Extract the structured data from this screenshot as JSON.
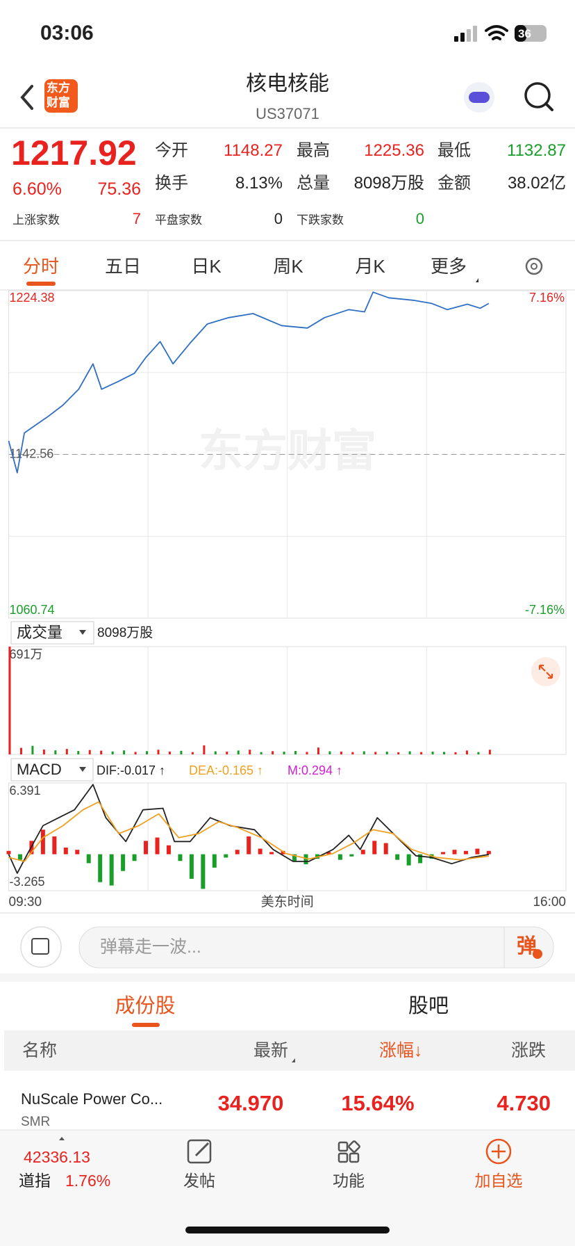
{
  "status_bar": {
    "time": "03:06",
    "battery": "36"
  },
  "header": {
    "logo_lines": [
      "东方",
      "财富"
    ],
    "title": "核电核能",
    "code": "US37071"
  },
  "quote": {
    "price": "1217.92",
    "change_pct": "6.60%",
    "change": "75.36",
    "fields": [
      {
        "label": "今开",
        "value": "1148.27",
        "color": "#e8231f"
      },
      {
        "label": "最高",
        "value": "1225.36",
        "color": "#e8231f"
      },
      {
        "label": "最低",
        "value": "1132.87",
        "color": "#1a9e2a"
      },
      {
        "label": "换手",
        "value": "8.13%",
        "color": "#222222"
      },
      {
        "label": "总量",
        "value": "8098万股",
        "color": "#222222"
      },
      {
        "label": "金额",
        "value": "38.02亿",
        "color": "#222222"
      }
    ],
    "breadth": [
      {
        "label": "上涨家数",
        "value": "7",
        "color": "#e8231f"
      },
      {
        "label": "平盘家数",
        "value": "0",
        "color": "#222222"
      },
      {
        "label": "下跌家数",
        "value": "0",
        "color": "#1a9e2a"
      }
    ]
  },
  "tabs": [
    "分时",
    "五日",
    "日K",
    "周K",
    "月K",
    "更多"
  ],
  "intraday": {
    "type": "line",
    "watermark": "东方财富",
    "color": "#2e6fc4",
    "up_color": "#e8231f",
    "down_color": "#1a9e2a",
    "xlim": [
      0,
      390
    ],
    "ylim": [
      1060.74,
      1224.38
    ],
    "yticks": [
      1224.38,
      1142.56,
      1060.74
    ],
    "y2lim": [
      -7.16,
      7.16
    ],
    "y2ticks": [
      {
        "value": 7.16,
        "label": "7.16%"
      },
      {
        "value": -7.16,
        "label": "-7.16%"
      }
    ],
    "x": [
      0,
      6,
      11,
      19,
      27,
      38,
      49,
      59,
      65,
      77,
      88,
      96,
      106,
      115,
      127,
      139,
      154,
      171,
      191,
      209,
      221,
      238,
      249,
      255,
      266,
      283,
      296,
      307,
      321,
      330,
      336
    ],
    "values": [
      1149.3,
      1133.4,
      1153.3,
      1157.3,
      1161.2,
      1167.2,
      1175.1,
      1187.8,
      1175.1,
      1179.1,
      1183.1,
      1191.0,
      1198.9,
      1187.8,
      1198.2,
      1207.7,
      1210.9,
      1212.9,
      1206.9,
      1205.7,
      1210.9,
      1214.9,
      1213.8,
      1223.6,
      1220.8,
      1219.6,
      1218.0,
      1214.9,
      1217.6,
      1215.6,
      1218.0
    ]
  },
  "volume": {
    "type": "bar",
    "selector": "成交量",
    "total": "8098万股",
    "up_color": "#e8231f",
    "down_color": "#1a9e2a",
    "xlim": [
      0,
      390
    ],
    "ylim": [
      0,
      691
    ],
    "yticks": [
      {
        "value": 691,
        "label": "691万"
      }
    ],
    "x": [
      0,
      8,
      16,
      24,
      32,
      40,
      48,
      56,
      64,
      72,
      80,
      88,
      96,
      104,
      112,
      120,
      128,
      136,
      144,
      152,
      160,
      168,
      176,
      184,
      192,
      200,
      208,
      216,
      224,
      232,
      240,
      248,
      256,
      264,
      272,
      280,
      288,
      296,
      304,
      312,
      320,
      328,
      336
    ],
    "values": [
      691,
      42,
      55,
      31,
      26,
      35,
      22,
      28,
      24,
      19,
      26,
      16,
      21,
      30,
      18,
      23,
      15,
      58,
      20,
      18,
      25,
      30,
      15,
      21,
      18,
      22,
      16,
      44,
      20,
      18,
      15,
      20,
      16,
      18,
      14,
      20,
      15,
      18,
      16,
      14,
      25,
      15,
      30
    ],
    "up": [
      true,
      true,
      false,
      true,
      false,
      true,
      false,
      true,
      true,
      false,
      false,
      true,
      false,
      true,
      true,
      false,
      true,
      true,
      false,
      true,
      false,
      true,
      false,
      true,
      false,
      false,
      true,
      true,
      false,
      true,
      true,
      false,
      true,
      false,
      true,
      false,
      true,
      false,
      false,
      true,
      true,
      false,
      true
    ]
  },
  "macd": {
    "type": "macd",
    "selector": "MACD",
    "xlim": [
      0,
      390
    ],
    "ylim": [
      -3.265,
      6.391
    ],
    "yticks": [
      6.391,
      -3.265
    ],
    "series": [
      {
        "label": "DIF:-0.017 ↑",
        "color": "#222222",
        "x": [
          0,
          6,
          13,
          24,
          35,
          46,
          59,
          68,
          82,
          94,
          108,
          116,
          127,
          141,
          155,
          172,
          185,
          199,
          210,
          227,
          238,
          246,
          258,
          272,
          285,
          296,
          310,
          324,
          336
        ],
        "values": [
          0.0,
          -1.7,
          0.0,
          2.56,
          3.27,
          3.98,
          6.25,
          3.27,
          1.14,
          3.98,
          4.12,
          1.14,
          1.14,
          3.27,
          2.56,
          2.2,
          0.43,
          -0.64,
          -0.64,
          0.43,
          1.7,
          0.43,
          3.27,
          1.49,
          -0.14,
          -0.28,
          -0.85,
          -0.28,
          -0.017
        ]
      },
      {
        "label": "DEA:-0.165 ↑",
        "color": "#f0a020",
        "x": [
          0,
          11,
          24,
          38,
          52,
          63,
          77,
          91,
          105,
          119,
          133,
          147,
          160,
          177,
          194,
          210,
          227,
          241,
          255,
          269,
          282,
          299,
          316,
          336
        ],
        "values": [
          -0.28,
          -0.64,
          1.49,
          2.56,
          3.98,
          4.69,
          1.85,
          2.56,
          3.62,
          1.49,
          1.85,
          2.91,
          2.41,
          1.49,
          0.07,
          -0.43,
          0.07,
          0.99,
          2.2,
          1.85,
          0.43,
          -0.28,
          -0.5,
          -0.165
        ]
      }
    ],
    "histogram": {
      "label": "M:0.294 ↑",
      "color": "#d020d0",
      "up_color": "#e8231f",
      "down_color": "#1a9e2a",
      "x": [
        0,
        8,
        16,
        24,
        32,
        40,
        48,
        56,
        64,
        72,
        80,
        88,
        96,
        104,
        112,
        120,
        128,
        136,
        144,
        152,
        160,
        168,
        176,
        184,
        192,
        200,
        208,
        216,
        224,
        232,
        240,
        248,
        256,
        264,
        272,
        280,
        288,
        296,
        304,
        312,
        320,
        328,
        336
      ],
      "values": [
        0.3,
        -0.5,
        1.2,
        2.2,
        1.6,
        0.6,
        0.4,
        -0.8,
        -2.5,
        -2.8,
        -1.5,
        -0.6,
        1.2,
        1.5,
        0.8,
        -0.6,
        -2.2,
        -3.1,
        -1.2,
        -0.3,
        0.4,
        1.6,
        0.5,
        0.2,
        0.3,
        -0.6,
        -0.9,
        -0.4,
        0.2,
        -0.5,
        -0.2,
        0.4,
        1.2,
        1.0,
        -0.5,
        -1.0,
        -0.8,
        -0.4,
        0.2,
        0.4,
        0.3,
        0.5,
        0.3
      ]
    },
    "xlabels": [
      "09:30",
      "美东时间",
      "16:00"
    ]
  },
  "comment_bar": {
    "placeholder": "弹幕走一波...",
    "button": "弹"
  },
  "list_tabs": [
    "成份股",
    "股吧"
  ],
  "table": {
    "columns": [
      "名称",
      "最新",
      "涨幅↓",
      "涨跌"
    ],
    "rows": [
      {
        "name": "NuScale Power Co...",
        "code": "SMR",
        "cells": [
          "34.970",
          "15.64%",
          "4.730"
        ]
      }
    ]
  },
  "bottom_bar": {
    "index_value": "42336.13",
    "index_name": "道指",
    "index_change": "1.76%",
    "items": [
      "发帖",
      "功能",
      "加自选"
    ]
  }
}
